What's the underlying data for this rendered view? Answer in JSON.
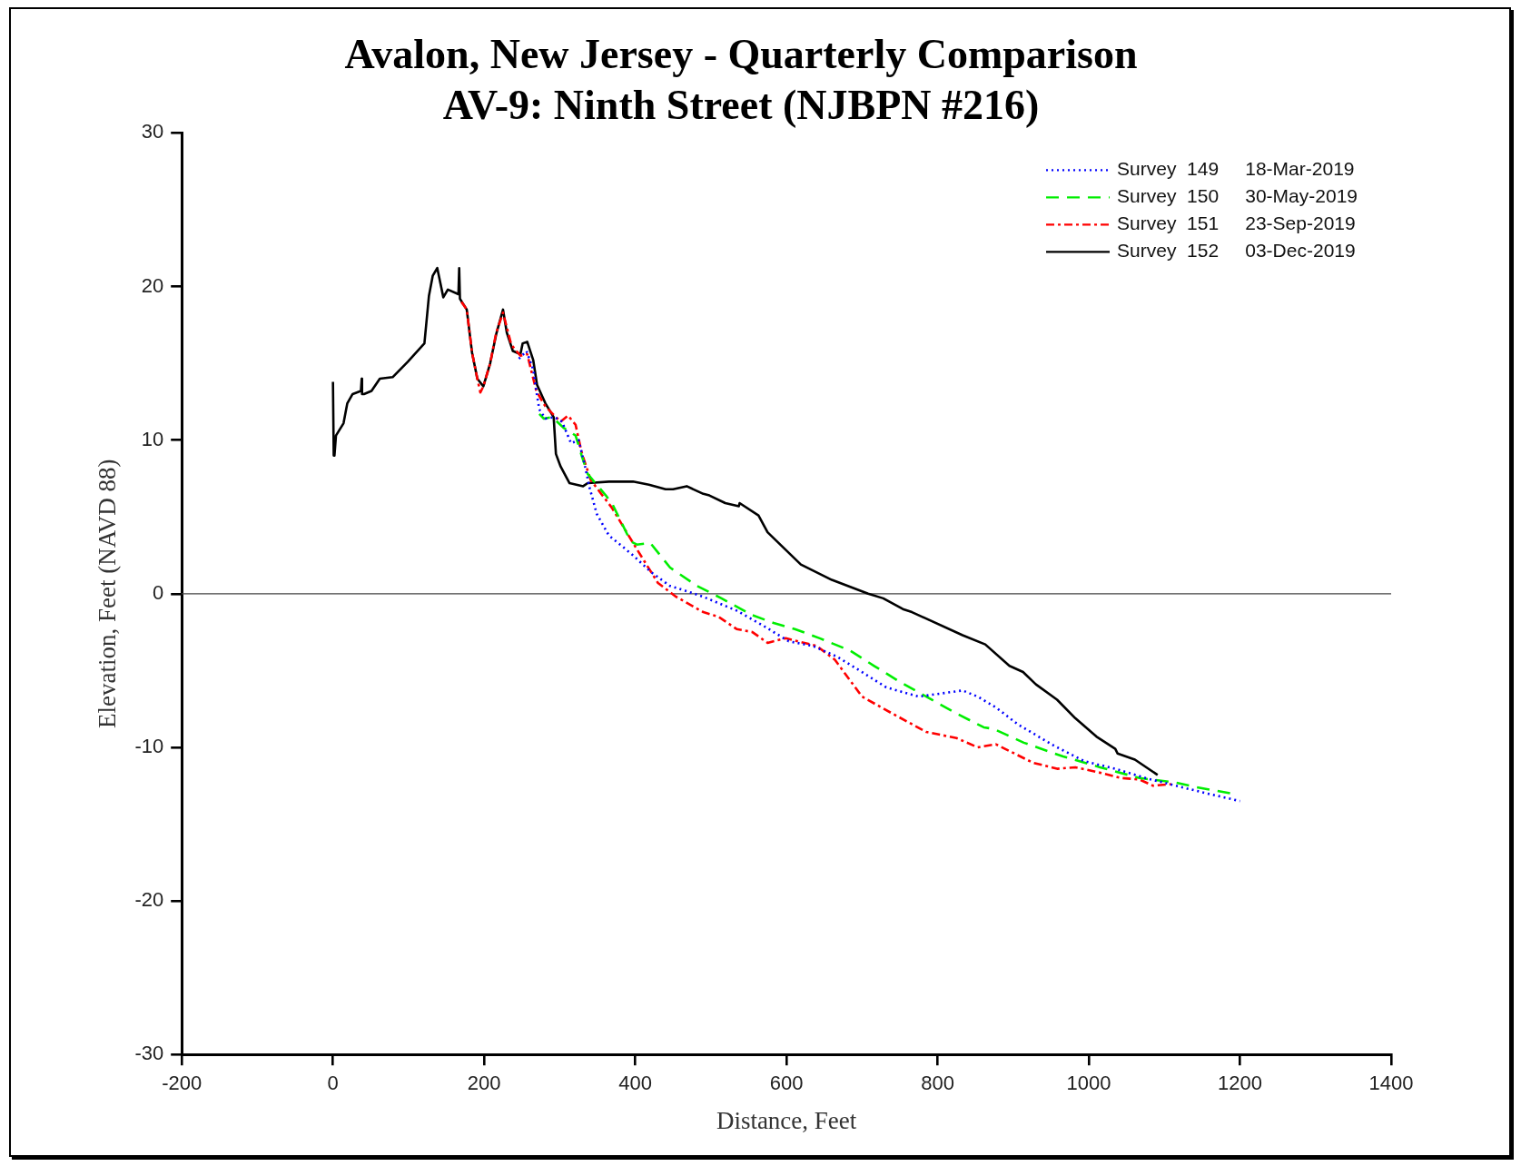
{
  "chart_data": {
    "type": "line",
    "title": "Avalon, New Jersey - Quarterly Comparison",
    "subtitle": "AV-9: Ninth Street (NJBPN #216)",
    "xlabel": "Distance, Feet",
    "ylabel": "Elevation, Feet (NAVD 88)",
    "xlim": [
      -200,
      1400
    ],
    "xticks": [
      -200,
      0,
      200,
      400,
      600,
      800,
      1000,
      1200,
      1400
    ],
    "ylim": [
      -30,
      30
    ],
    "yticks": [
      -30,
      -20,
      -10,
      0,
      10,
      20,
      30
    ],
    "grid": false,
    "legend": "top right",
    "ref_lines": [
      {
        "axis": "y",
        "value": 0,
        "color": "#444444"
      }
    ],
    "series": [
      {
        "name": "Survey  149     18-Mar-2019",
        "color": "#0000ff",
        "line_style": "dotted",
        "x": [
          246,
          256,
          265,
          269,
          273,
          281,
          293,
          303,
          315,
          325,
          333,
          339,
          349,
          365,
          397,
          421,
          446,
          466,
          490,
          534,
          570,
          603,
          635,
          667,
          700,
          732,
          775,
          833,
          853,
          877,
          906,
          954,
          994,
          1035,
          1075,
          1115,
          1156,
          1200
        ],
        "values": [
          15.3,
          15.8,
          14.6,
          13.2,
          12.0,
          11.4,
          11.5,
          11.2,
          9.8,
          10.0,
          8.4,
          7.0,
          5.2,
          3.8,
          2.5,
          1.4,
          0.5,
          0.2,
          -0.2,
          -1.1,
          -2.1,
          -3.1,
          -3.4,
          -4.1,
          -5.1,
          -6.1,
          -6.7,
          -6.3,
          -6.7,
          -7.4,
          -8.5,
          -9.9,
          -10.9,
          -11.4,
          -12.0,
          -12.5,
          -13.0,
          -13.5
        ]
      },
      {
        "name": "Survey  150     30-May-2019",
        "color": "#00ee00",
        "line_style": "dashed",
        "x": [
          273,
          279,
          290,
          305,
          321,
          329,
          337,
          361,
          370,
          394,
          402,
          420,
          446,
          482,
          514,
          555,
          583,
          611,
          644,
          684,
          716,
          752,
          785,
          825,
          861,
          874,
          914,
          966,
          1015,
          1067,
          1115,
          1143,
          1188
        ],
        "values": [
          11.7,
          11.4,
          11.5,
          10.8,
          10.3,
          9.0,
          7.8,
          6.4,
          5.8,
          3.4,
          3.2,
          3.3,
          1.7,
          0.5,
          -0.3,
          -1.4,
          -1.9,
          -2.3,
          -2.9,
          -3.7,
          -4.7,
          -5.8,
          -6.7,
          -7.8,
          -8.7,
          -8.8,
          -9.7,
          -10.6,
          -11.3,
          -12.0,
          -12.3,
          -12.6,
          -13.0
        ]
      },
      {
        "name": "Survey  151     23-Sep-2019",
        "color": "#ff0000",
        "line_style": "dashdot",
        "x": [
          170,
          177,
          184,
          191,
          195,
          199,
          208,
          216,
          225,
          236,
          248,
          257,
          269,
          281,
          301,
          311,
          321,
          329,
          341,
          369,
          402,
          430,
          454,
          490,
          510,
          534,
          555,
          575,
          599,
          640,
          664,
          700,
          740,
          785,
          825,
          853,
          877,
          926,
          958,
          982,
          1019,
          1043,
          1067,
          1085,
          1109
        ],
        "values": [
          19.0,
          18.5,
          15.7,
          14.0,
          13.1,
          13.5,
          15.0,
          17.0,
          18.3,
          16.2,
          15.5,
          15.6,
          13.2,
          12.2,
          11.2,
          11.6,
          11.0,
          9.2,
          7.4,
          5.6,
          2.9,
          0.7,
          -0.2,
          -1.2,
          -1.5,
          -2.3,
          -2.5,
          -3.2,
          -2.9,
          -3.4,
          -4.3,
          -6.7,
          -7.8,
          -9.0,
          -9.4,
          -10.0,
          -9.8,
          -11.0,
          -11.4,
          -11.3,
          -11.7,
          -12.0,
          -12.1,
          -12.5,
          -12.4
        ]
      },
      {
        "name": "Survey  152     03-Dec-2019",
        "color": "#000000",
        "line_style": "solid",
        "x": [
          0,
          1,
          2,
          4,
          14,
          19,
          26,
          37,
          38,
          38.5,
          41,
          51,
          62,
          79,
          99,
          121,
          127,
          132,
          138,
          146,
          152,
          166,
          167,
          168,
          177,
          184,
          191,
          199,
          208,
          216,
          225,
          230,
          238,
          248,
          251,
          257,
          265,
          270,
          281,
          292,
          295,
          301,
          313,
          331,
          337,
          365,
          397,
          418,
          440,
          450,
          468,
          490,
          498,
          519,
          537,
          538,
          563,
          575,
          619,
          660,
          708,
          728,
          754,
          766,
          833,
          863,
          895,
          913,
          930,
          958,
          982,
          1010,
          1035,
          1038,
          1061,
          1091
        ],
        "values": [
          13.8,
          9.0,
          9.0,
          10.3,
          11.1,
          12.4,
          13.0,
          13.2,
          14.0,
          13.0,
          13.0,
          13.2,
          14.0,
          14.1,
          15.1,
          16.3,
          19.4,
          20.7,
          21.2,
          19.3,
          19.8,
          19.5,
          21.2,
          19.2,
          18.5,
          15.7,
          14.0,
          13.5,
          15.0,
          16.9,
          18.5,
          17.0,
          15.8,
          15.6,
          16.3,
          16.4,
          15.2,
          13.6,
          12.4,
          11.5,
          9.1,
          8.3,
          7.2,
          7.0,
          7.2,
          7.3,
          7.3,
          7.1,
          6.8,
          6.8,
          7.0,
          6.5,
          6.4,
          5.9,
          5.7,
          5.9,
          5.1,
          4.0,
          1.9,
          0.9,
          0.0,
          -0.3,
          -1.0,
          -1.2,
          -2.7,
          -3.3,
          -4.7,
          -5.1,
          -5.9,
          -6.9,
          -8.1,
          -9.3,
          -10.1,
          -10.4,
          -10.8,
          -11.8
        ]
      }
    ]
  }
}
